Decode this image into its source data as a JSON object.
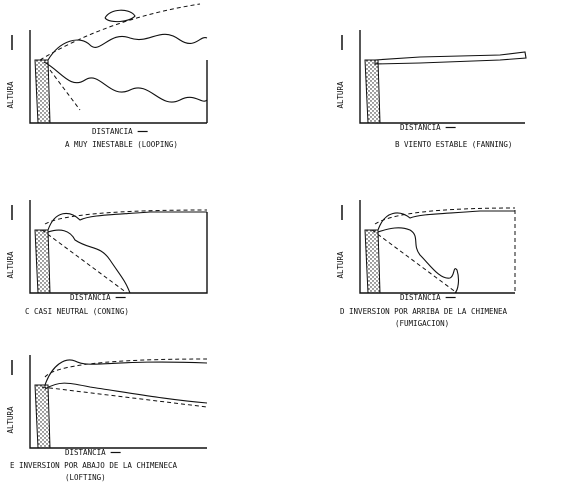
{
  "panels": [
    {
      "y_label": "ALTURA",
      "x_label": "DISTANCIA",
      "caption": [
        "A   MUY INESTABLE (LOOPING)"
      ]
    },
    {
      "y_label": "ALTURA",
      "x_label": "DISTANCIA",
      "caption": [
        "B   VIENTO ESTABLE (FANNING)"
      ]
    },
    {
      "y_label": "ALTURA",
      "x_label": "DISTANCIA",
      "caption": [
        "C   CASI NEUTRAL (CONING)"
      ]
    },
    {
      "y_label": "ALTURA",
      "x_label": "DISTANCIA",
      "caption": [
        "D   INVERSION POR ARRIBA DE LA CHIMENEA",
        "(FUMIGACION)"
      ]
    },
    {
      "y_label": "ALTURA",
      "x_label": "DISTANCIA",
      "caption": [
        "E   INVERSION POR ABAJO DE LA CHIMENECA",
        "(LOFTING)"
      ]
    }
  ]
}
